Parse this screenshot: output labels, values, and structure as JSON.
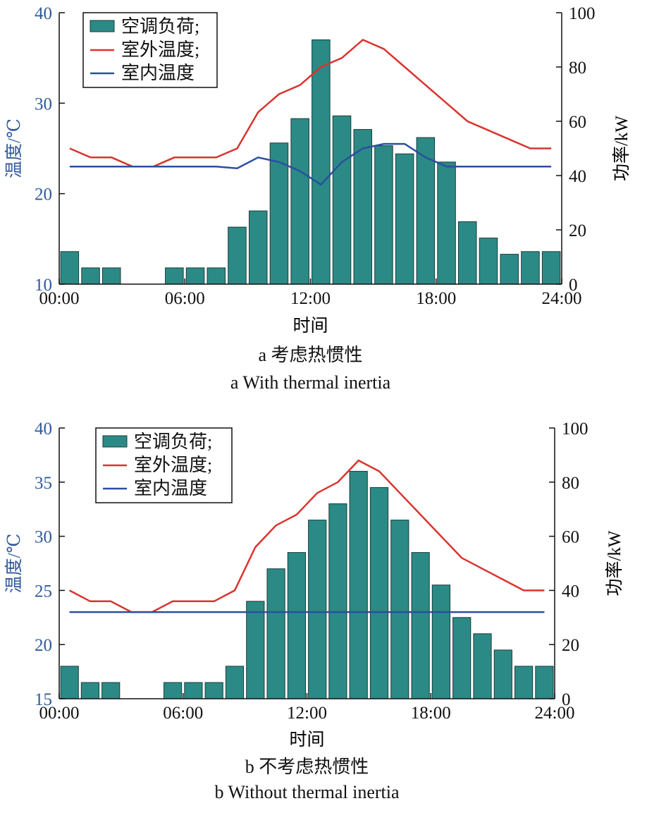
{
  "colors": {
    "bar": "#2b8a86",
    "bar_edge": "#1b3b3a",
    "outdoor": "#d9342f",
    "indoor": "#2a4f9e",
    "left_axis": "#2f5a9a",
    "axis": "#111111"
  },
  "chart_data": [
    {
      "type": "bar+line",
      "caption_cn": "a 考虑热惯性",
      "caption_en": "a With thermal inertia",
      "xlabel": "时间",
      "ylabel_left": "温度/℃",
      "ylabel_right": "功率/kW",
      "x_ticks": [
        "00:00",
        "06:00",
        "12:00",
        "18:00",
        "24:00"
      ],
      "xlim": [
        0,
        24
      ],
      "ylim_left": [
        10,
        40
      ],
      "y_ticks_left": [
        "10",
        "20",
        "30",
        "40"
      ],
      "ylim_right": [
        0,
        100
      ],
      "y_ticks_right": [
        "0",
        "20",
        "40",
        "60",
        "80",
        "100"
      ],
      "legend_position": "top-left",
      "legend": [
        "空调负荷;",
        "室外温度;",
        "室内温度"
      ],
      "hours": [
        1,
        2,
        3,
        4,
        5,
        6,
        7,
        8,
        9,
        10,
        11,
        12,
        13,
        14,
        15,
        16,
        17,
        18,
        19,
        20,
        21,
        22,
        23,
        24
      ],
      "load_kw": [
        12,
        6,
        6,
        0,
        0,
        6,
        6,
        6,
        21,
        27,
        52,
        61,
        90,
        62,
        57,
        51,
        48,
        54,
        45,
        23,
        17,
        11,
        12,
        12
      ],
      "outdoor_x": [
        1,
        2,
        3,
        4,
        5,
        6,
        7,
        8,
        9,
        10,
        11,
        12,
        13,
        14,
        15,
        16,
        17,
        18,
        19,
        20,
        21,
        22,
        23,
        24
      ],
      "outdoor_temp": [
        25,
        24,
        24,
        23,
        23,
        24,
        24,
        24,
        25,
        29,
        31,
        32,
        34,
        35,
        37,
        36,
        34,
        32,
        30,
        28,
        27,
        26,
        25,
        25
      ],
      "indoor_x": [
        1,
        2,
        3,
        4,
        5,
        6,
        7,
        8,
        9,
        10,
        11,
        12,
        13,
        14,
        15,
        16,
        17,
        18,
        19,
        20,
        21,
        22,
        23,
        24
      ],
      "indoor_temp": [
        23,
        23,
        23,
        23,
        23,
        23,
        23,
        23,
        22.8,
        24,
        23.5,
        22.5,
        21,
        23.5,
        25,
        25.5,
        25.5,
        24,
        23,
        23,
        23,
        23,
        23,
        23
      ]
    },
    {
      "type": "bar+line",
      "caption_cn": "b 不考虑热惯性",
      "caption_en": "b Without thermal inertia",
      "xlabel": "时间",
      "ylabel_left": "温度/℃",
      "ylabel_right": "功率/kW",
      "x_ticks": [
        "00:00",
        "06:00",
        "12:00",
        "18:00",
        "24:00"
      ],
      "xlim": [
        0,
        24
      ],
      "ylim_left": [
        15,
        40
      ],
      "y_ticks_left": [
        "15",
        "20",
        "25",
        "30",
        "35",
        "40"
      ],
      "ylim_right": [
        0,
        100
      ],
      "y_ticks_right": [
        "0",
        "20",
        "40",
        "60",
        "80",
        "100"
      ],
      "legend_position": "top-left",
      "legend": [
        "空调负荷;",
        "室外温度;",
        "室内温度"
      ],
      "hours": [
        1,
        2,
        3,
        4,
        5,
        6,
        7,
        8,
        9,
        10,
        11,
        12,
        13,
        14,
        15,
        16,
        17,
        18,
        19,
        20,
        21,
        22,
        23,
        24
      ],
      "load_kw": [
        12,
        6,
        6,
        0,
        0,
        6,
        6,
        6,
        12,
        36,
        48,
        54,
        66,
        72,
        84,
        78,
        66,
        54,
        42,
        30,
        24,
        18,
        12,
        12
      ],
      "outdoor_x": [
        1,
        2,
        3,
        4,
        5,
        6,
        7,
        8,
        9,
        10,
        11,
        12,
        13,
        14,
        15,
        16,
        17,
        18,
        19,
        20,
        21,
        22,
        23,
        24
      ],
      "outdoor_temp": [
        25,
        24,
        24,
        23,
        23,
        24,
        24,
        24,
        25,
        29,
        31,
        32,
        34,
        35,
        37,
        36,
        34,
        32,
        30,
        28,
        27,
        26,
        25,
        25
      ],
      "indoor_x": [
        1,
        24
      ],
      "indoor_temp": [
        23,
        23
      ]
    }
  ]
}
